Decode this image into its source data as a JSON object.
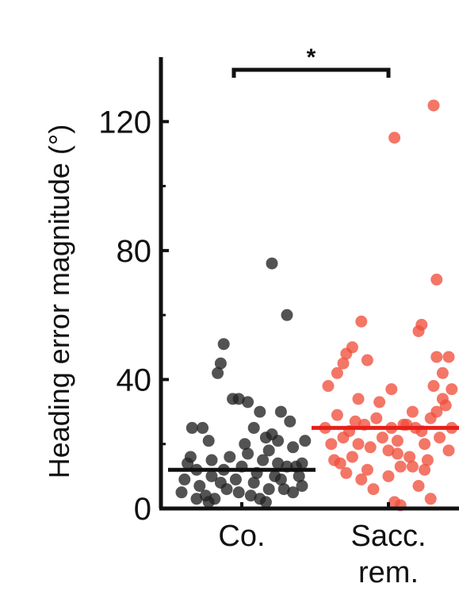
{
  "chart_data": {
    "type": "scatter",
    "ylabel": "Heading error magnitude (°)",
    "ylim": [
      0,
      140
    ],
    "yticks": [
      0,
      40,
      80,
      120
    ],
    "ytick_labels": [
      "0",
      "40",
      "80",
      "120"
    ],
    "categories": [
      "Co.",
      "Sacc.\nrem."
    ],
    "category_lines": [
      [
        "Co."
      ],
      [
        "Sacc.",
        "rem."
      ]
    ],
    "significance": "*",
    "colors": {
      "axis": "#111111",
      "control": "#222222",
      "saccade": "#f0503c",
      "saccade_mean": "#e8201a"
    },
    "series": [
      {
        "category": "Co.",
        "mean": 12,
        "points": [
          [
            -0.4,
            5
          ],
          [
            -0.33,
            25
          ],
          [
            -0.26,
            25
          ],
          [
            -0.22,
            21
          ],
          [
            -0.16,
            42
          ],
          [
            -0.14,
            45
          ],
          [
            -0.12,
            51
          ],
          [
            -0.36,
            14
          ],
          [
            -0.3,
            12
          ],
          [
            -0.28,
            7
          ],
          [
            -0.24,
            4
          ],
          [
            -0.2,
            10
          ],
          [
            -0.18,
            3
          ],
          [
            -0.1,
            6
          ],
          [
            -0.06,
            34
          ],
          [
            -0.02,
            34
          ],
          [
            0.04,
            33
          ],
          [
            0.12,
            30
          ],
          [
            0.2,
            23
          ],
          [
            0.26,
            30
          ],
          [
            0.32,
            27
          ],
          [
            0.2,
            76
          ],
          [
            0.3,
            60
          ],
          [
            -0.08,
            16
          ],
          [
            -0.04,
            9
          ],
          [
            0.0,
            13
          ],
          [
            0.02,
            20
          ],
          [
            0.06,
            4
          ],
          [
            0.08,
            8
          ],
          [
            0.1,
            11
          ],
          [
            0.14,
            15
          ],
          [
            0.16,
            2
          ],
          [
            0.18,
            18
          ],
          [
            0.22,
            10
          ],
          [
            0.24,
            14
          ],
          [
            0.28,
            6
          ],
          [
            0.3,
            13
          ],
          [
            0.34,
            19
          ],
          [
            0.38,
            10
          ],
          [
            0.4,
            7
          ],
          [
            -0.38,
            9
          ],
          [
            -0.34,
            16
          ],
          [
            -0.3,
            3
          ],
          [
            -0.2,
            15
          ],
          [
            -0.14,
            8
          ],
          [
            0.08,
            25
          ],
          [
            0.16,
            22
          ],
          [
            0.24,
            21
          ],
          [
            0.36,
            13
          ],
          [
            0.42,
            21
          ],
          [
            -0.02,
            5
          ],
          [
            0.12,
            3
          ],
          [
            0.26,
            9
          ],
          [
            0.34,
            5
          ],
          [
            0.04,
            17
          ],
          [
            -0.22,
            2
          ],
          [
            -0.12,
            12
          ],
          [
            0.18,
            6
          ],
          [
            0.4,
            14
          ]
        ]
      },
      {
        "category": "Sacc.\nrem.",
        "mean": 25,
        "points": [
          [
            -0.4,
            38
          ],
          [
            -0.34,
            42
          ],
          [
            -0.3,
            45
          ],
          [
            -0.28,
            48
          ],
          [
            -0.24,
            50
          ],
          [
            -0.18,
            58
          ],
          [
            -0.14,
            46
          ],
          [
            0.04,
            115
          ],
          [
            0.3,
            125
          ],
          [
            0.32,
            71
          ],
          [
            0.2,
            55
          ],
          [
            0.22,
            57
          ],
          [
            0.4,
            47
          ],
          [
            0.36,
            42
          ],
          [
            0.32,
            47
          ],
          [
            0.3,
            38
          ],
          [
            0.42,
            37
          ],
          [
            -0.42,
            25
          ],
          [
            -0.38,
            20
          ],
          [
            -0.36,
            15
          ],
          [
            -0.34,
            29
          ],
          [
            -0.3,
            22
          ],
          [
            -0.26,
            24
          ],
          [
            -0.22,
            27
          ],
          [
            -0.2,
            34
          ],
          [
            -0.16,
            26
          ],
          [
            -0.12,
            19
          ],
          [
            -0.08,
            28
          ],
          [
            -0.04,
            22
          ],
          [
            0.0,
            18
          ],
          [
            0.02,
            25
          ],
          [
            0.06,
            21
          ],
          [
            0.08,
            13
          ],
          [
            0.1,
            26
          ],
          [
            0.14,
            16
          ],
          [
            0.16,
            30
          ],
          [
            0.18,
            25
          ],
          [
            0.22,
            24
          ],
          [
            0.24,
            20
          ],
          [
            0.26,
            15
          ],
          [
            0.28,
            28
          ],
          [
            0.34,
            22
          ],
          [
            0.38,
            32
          ],
          [
            0.4,
            18
          ],
          [
            0.42,
            25
          ],
          [
            -0.32,
            14
          ],
          [
            -0.28,
            11
          ],
          [
            -0.24,
            16
          ],
          [
            -0.18,
            9
          ],
          [
            -0.14,
            12
          ],
          [
            -0.1,
            6
          ],
          [
            0.0,
            10
          ],
          [
            0.04,
            2
          ],
          [
            0.08,
            1
          ],
          [
            0.16,
            13
          ],
          [
            0.2,
            7
          ],
          [
            0.28,
            3
          ],
          [
            0.36,
            34
          ],
          [
            0.02,
            37
          ],
          [
            -0.06,
            33
          ],
          [
            0.12,
            26
          ],
          [
            0.32,
            30
          ],
          [
            -0.2,
            20
          ],
          [
            0.24,
            12
          ],
          [
            0.06,
            17
          ]
        ]
      }
    ]
  }
}
